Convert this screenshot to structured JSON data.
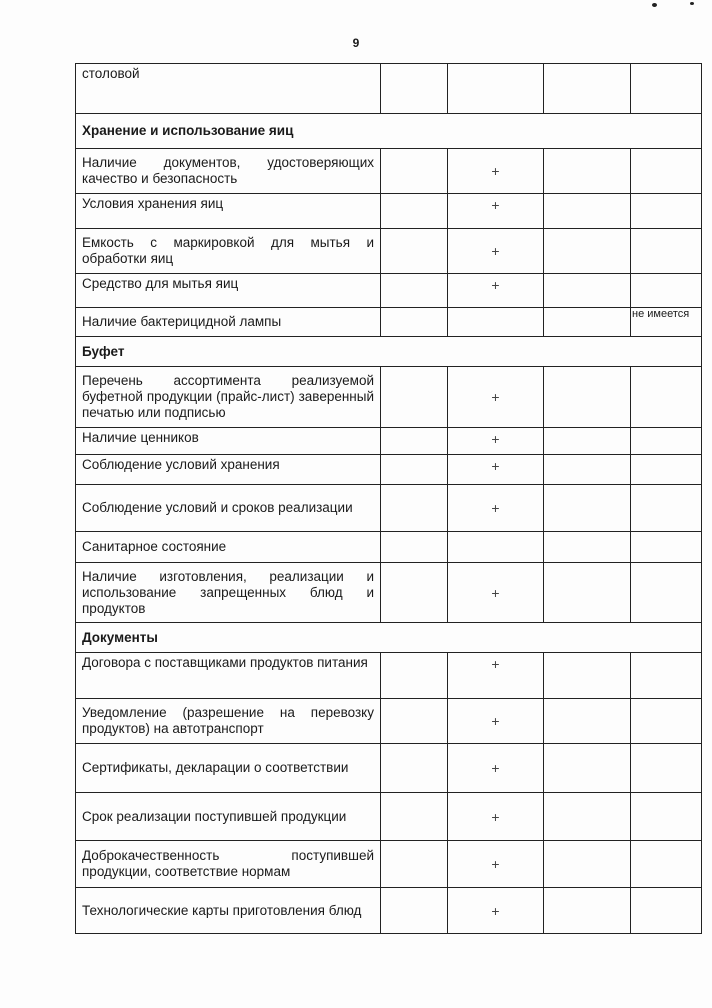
{
  "page_number": "9",
  "rows": [
    {
      "type": "item",
      "text": "столовой",
      "mark": "",
      "note": "",
      "h": 50,
      "pos": "top"
    },
    {
      "type": "section",
      "text": "Хранение и использование яиц",
      "h": 35
    },
    {
      "type": "item",
      "text": "Наличие документов, удостоверяющих качество и безопасность",
      "mark": "+",
      "note": "",
      "h": 45,
      "pos": "mid"
    },
    {
      "type": "item",
      "text": "Условия хранения яиц",
      "mark": "+",
      "note": "",
      "h": 35,
      "pos": "top"
    },
    {
      "type": "item",
      "text": "Емкость с маркировкой для мытья и обработки яиц",
      "mark": "+",
      "note": "",
      "h": 45,
      "pos": "mid"
    },
    {
      "type": "item",
      "text": "Средство для мытья яиц",
      "mark": "+",
      "note": "",
      "h": 34,
      "pos": "top"
    },
    {
      "type": "item",
      "text": "Наличие бактерицидной лампы",
      "mark": "",
      "note": "не имеется",
      "h": 29,
      "pos": "mid"
    },
    {
      "type": "section",
      "text": "Буфет",
      "h": 30
    },
    {
      "type": "item",
      "text": "Перечень ассортимента реализуемой буфетной продукции (прайс-лист) заверенный печатью или подписью",
      "mark": "+",
      "note": "",
      "h": 61,
      "pos": "mid"
    },
    {
      "type": "item",
      "text": "Наличие ценников",
      "mark": "+",
      "note": "",
      "h": 27,
      "pos": "top"
    },
    {
      "type": "item",
      "text": "Соблюдение условий хранения",
      "mark": "+",
      "note": "",
      "h": 30,
      "pos": "top"
    },
    {
      "type": "item",
      "text": "Соблюдение условий и сроков реализации",
      "mark": "+",
      "note": "",
      "h": 47,
      "pos": "mid"
    },
    {
      "type": "item",
      "text": "Санитарное состояние",
      "mark": "",
      "note": "",
      "h": 31,
      "pos": "mid"
    },
    {
      "type": "item",
      "text": "Наличие изготовления, реализации и использование запрещенных блюд и продуктов",
      "mark": "+",
      "note": "",
      "h": 60,
      "pos": "mid"
    },
    {
      "type": "section",
      "text": "Документы",
      "h": 30
    },
    {
      "type": "item",
      "text": "Договора с поставщиками продуктов питания",
      "mark": "+",
      "note": "",
      "h": 46,
      "pos": "top"
    },
    {
      "type": "item",
      "text": "Уведомление (разрешение на перевозку продуктов) на автотранспорт",
      "mark": "+",
      "note": "",
      "h": 45,
      "pos": "mid"
    },
    {
      "type": "item",
      "text": "Сертификаты, декларации о соответствии",
      "mark": "+",
      "note": "",
      "h": 49,
      "pos": "mid"
    },
    {
      "type": "item",
      "text": "Срок реализации поступившей продукции",
      "mark": "+",
      "note": "",
      "h": 48,
      "pos": "mid"
    },
    {
      "type": "item",
      "text": "Доброкачественность поступившей продукции, соответствие нормам",
      "mark": "+",
      "note": "",
      "h": 47,
      "pos": "mid"
    },
    {
      "type": "item",
      "text": "Технологические карты приготовления блюд",
      "mark": "+",
      "note": "",
      "h": 46,
      "pos": "mid"
    }
  ]
}
